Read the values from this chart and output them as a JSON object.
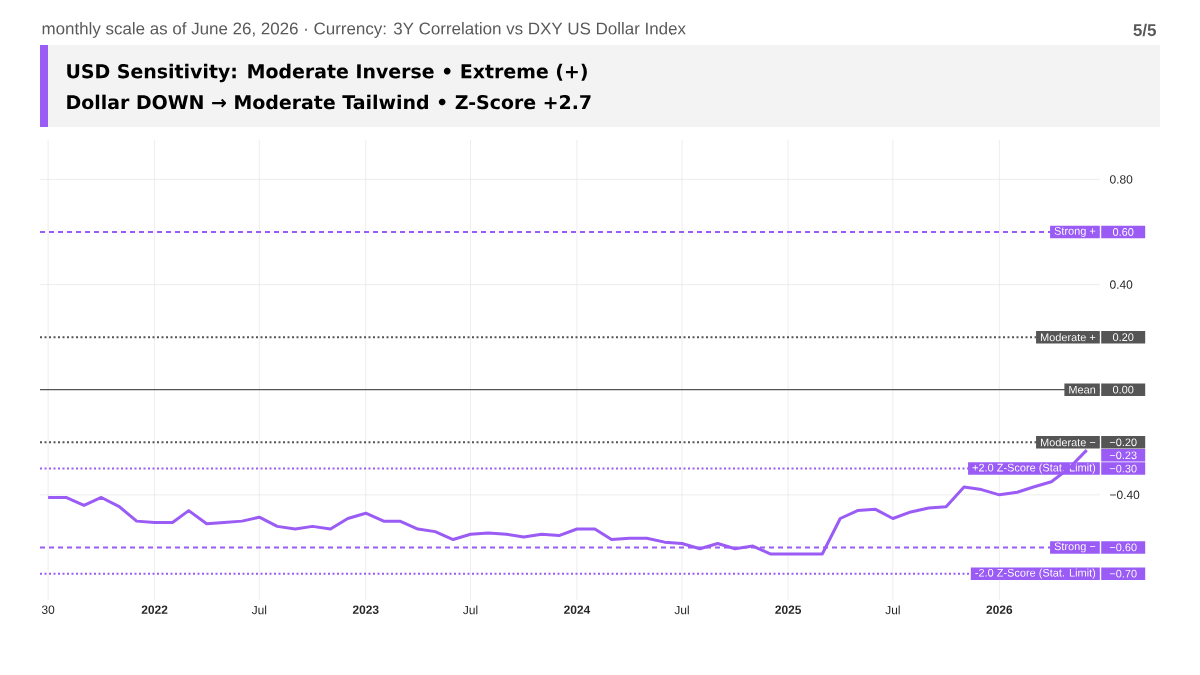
{
  "chart_data": {
    "type": "line",
    "title": "monthly scale as of June 26, 2026 · Currency: 3Y Correlation vs DXY US Dollar Index",
    "subtitle": "USD Sensitivity: Moderate Inverse • Extreme (+)",
    "x": [
      "2021-07",
      "2021-08",
      "2021-09",
      "2021-10",
      "2021-11",
      "2021-12",
      "2022-01",
      "2022-02",
      "2022-03",
      "2022-04",
      "2022-05",
      "2022-06",
      "2022-07",
      "2022-08",
      "2022-09",
      "2022-10",
      "2022-11",
      "2022-12",
      "2023-01",
      "2023-02",
      "2023-03",
      "2023-04",
      "2023-05",
      "2023-06",
      "2023-07",
      "2023-08",
      "2023-09",
      "2023-10",
      "2023-11",
      "2023-12",
      "2024-01",
      "2024-02",
      "2024-03",
      "2024-04",
      "2024-05",
      "2024-06",
      "2024-07",
      "2024-08",
      "2024-09",
      "2024-10",
      "2024-11",
      "2024-12",
      "2025-01",
      "2025-02",
      "2025-03",
      "2025-04",
      "2025-05",
      "2025-06",
      "2025-07",
      "2025-08",
      "2025-09",
      "2025-10",
      "2025-11",
      "2025-12",
      "2026-01",
      "2026-02",
      "2026-03",
      "2026-04",
      "2026-05",
      "2026-06"
    ],
    "series": [
      {
        "color": "#9a5cf5",
        "values": [
          -0.41,
          -0.41,
          -0.44,
          -0.41,
          -0.445,
          -0.5,
          -0.505,
          -0.505,
          -0.46,
          -0.51,
          -0.505,
          -0.5,
          -0.485,
          -0.52,
          -0.53,
          -0.52,
          -0.53,
          -0.49,
          -0.47,
          -0.5,
          -0.5,
          -0.53,
          -0.54,
          -0.57,
          -0.55,
          -0.545,
          -0.55,
          -0.56,
          -0.55,
          -0.555,
          -0.53,
          -0.53,
          -0.57,
          -0.565,
          -0.565,
          -0.58,
          -0.585,
          -0.605,
          -0.585,
          -0.605,
          -0.595,
          -0.625,
          -0.625,
          -0.625,
          -0.625,
          -0.49,
          -0.46,
          -0.455,
          -0.49,
          -0.465,
          -0.45,
          -0.445,
          -0.37,
          -0.38,
          -0.4,
          -0.39,
          -0.37,
          -0.35,
          -0.3,
          -0.23
        ]
      }
    ],
    "xlim": [
      "2021-06-17",
      "2026-06-24"
    ],
    "xticks": [
      {
        "value": "2021-07",
        "label": "30"
      },
      {
        "value": "2022-01",
        "label": "2022"
      },
      {
        "value": "2022-07",
        "label": "Jul"
      },
      {
        "value": "2023-01",
        "label": "2023"
      },
      {
        "value": "2023-07",
        "label": "Jul"
      },
      {
        "value": "2024-01",
        "label": "2024"
      },
      {
        "value": "2024-07",
        "label": "Jul"
      },
      {
        "value": "2025-01",
        "label": "2025"
      },
      {
        "value": "2025-07",
        "label": "Jul"
      },
      {
        "value": "2026-01",
        "label": "2026"
      }
    ],
    "ylim": [
      -0.8,
      0.95
    ],
    "yticks": [
      {
        "value": -0.4,
        "label": "−0.40"
      },
      {
        "value": 0.4,
        "label": "0.40"
      },
      {
        "value": 0.8,
        "label": "0.80"
      }
    ],
    "grid": true,
    "line_style": "solid",
    "ref_lines": [
      {
        "axis": "y",
        "value": 0.6,
        "label": "Strong +",
        "color": "#9a5cf5",
        "line_style": "dashed"
      },
      {
        "axis": "y",
        "value": 0.2,
        "label": "Moderate +",
        "color": "#555555",
        "line_style": "dotted"
      },
      {
        "axis": "y",
        "value": 0,
        "label": "Mean",
        "color": "#555555",
        "line_style": "solid"
      },
      {
        "axis": "y",
        "value": -0.2,
        "label": "Moderate −",
        "color": "#555555",
        "line_style": "dotted"
      },
      {
        "axis": "y",
        "value": -0.3,
        "label": "+2.0 Z-Score (Stat. Limit)",
        "color": "#9a5cf5",
        "line_style": "dotted"
      },
      {
        "axis": "y",
        "value": -0.6,
        "label": "Strong −",
        "color": "#9a5cf5",
        "line_style": "dashed"
      },
      {
        "axis": "y",
        "value": -0.7,
        "label": "-2.0 Z-Score (Stat. Limit)",
        "color": "#9a5cf5",
        "line_style": "dotted"
      }
    ],
    "annotations": [
      "Dollar DOWN → Moderate Tailwind • Z-Score +2.7",
      "5/5",
      {
        "text": "−0.23",
        "x": "2026-06",
        "y": -0.23
      },
      "0.60",
      "0.20",
      "0.00",
      "−0.20",
      "−0.30",
      "−0.60",
      "−0.70"
    ]
  }
}
